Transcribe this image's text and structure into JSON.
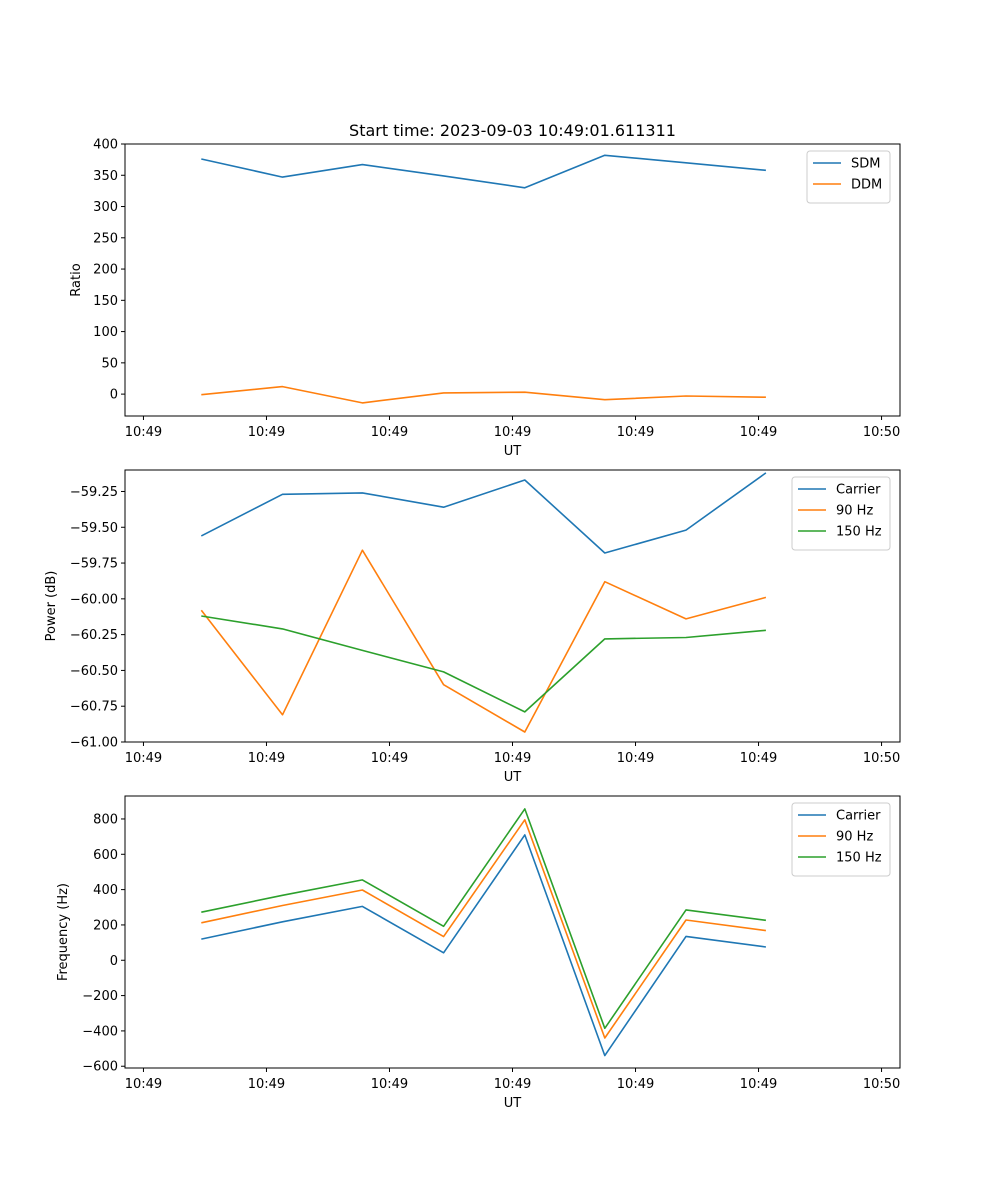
{
  "chart_data": [
    {
      "type": "line",
      "title": "Start time: 2023-09-03 10:49:01.611311",
      "xlabel": "UT",
      "ylabel": "Ratio",
      "xlim": [
        -0.15,
        6.15
      ],
      "ylim": [
        -35,
        400
      ],
      "xticks": [
        0,
        1,
        2,
        3,
        4,
        5,
        6
      ],
      "xtick_labels": [
        "10:49",
        "10:49",
        "10:49",
        "10:49",
        "10:49",
        "10:49",
        "10:50"
      ],
      "yticks": [
        0,
        50,
        100,
        150,
        200,
        250,
        300,
        350,
        400
      ],
      "ytick_labels": [
        "0",
        "50",
        "100",
        "150",
        "200",
        "250",
        "300",
        "350",
        "400"
      ],
      "legend": "top-right",
      "x": [
        0.47,
        1.13,
        1.78,
        2.44,
        3.1,
        3.75,
        4.41,
        5.06
      ],
      "series": [
        {
          "name": "SDM",
          "color": "#1f77b4",
          "values": [
            376,
            347,
            367,
            349,
            330,
            382,
            370,
            358
          ]
        },
        {
          "name": "DDM",
          "color": "#ff7f0e",
          "values": [
            -1,
            12,
            -14,
            2,
            3,
            -9,
            -3,
            -5
          ]
        }
      ]
    },
    {
      "type": "line",
      "title": "",
      "xlabel": "UT",
      "ylabel": "Power (dB)",
      "xlim": [
        -0.15,
        6.15
      ],
      "ylim": [
        -61.0,
        -59.1
      ],
      "xticks": [
        0,
        1,
        2,
        3,
        4,
        5,
        6
      ],
      "xtick_labels": [
        "10:49",
        "10:49",
        "10:49",
        "10:49",
        "10:49",
        "10:49",
        "10:50"
      ],
      "yticks": [
        -59.25,
        -59.5,
        -59.75,
        -60.0,
        -60.25,
        -60.5,
        -60.75,
        -61.0
      ],
      "ytick_labels": [
        "−59.25",
        "−59.50",
        "−59.75",
        "−60.00",
        "−60.25",
        "−60.50",
        "−60.75",
        "−61.00"
      ],
      "legend": "top-right",
      "x": [
        0.47,
        1.13,
        1.78,
        2.44,
        3.1,
        3.75,
        4.41,
        5.06
      ],
      "series": [
        {
          "name": "Carrier",
          "color": "#1f77b4",
          "values": [
            -59.56,
            -59.27,
            -59.26,
            -59.36,
            -59.17,
            -59.68,
            -59.52,
            -59.12
          ]
        },
        {
          "name": "90 Hz",
          "color": "#ff7f0e",
          "values": [
            -60.08,
            -60.81,
            -59.66,
            -60.6,
            -60.93,
            -59.88,
            -60.14,
            -59.99
          ]
        },
        {
          "name": "150 Hz",
          "color": "#2ca02c",
          "values": [
            -60.12,
            -60.21,
            -60.36,
            -60.51,
            -60.79,
            -60.28,
            -60.27,
            -60.22
          ]
        }
      ]
    },
    {
      "type": "line",
      "title": "",
      "xlabel": "UT",
      "ylabel": "Frequency (Hz)",
      "xlim": [
        -0.15,
        6.15
      ],
      "ylim": [
        -610,
        930
      ],
      "xticks": [
        0,
        1,
        2,
        3,
        4,
        5,
        6
      ],
      "xtick_labels": [
        "10:49",
        "10:49",
        "10:49",
        "10:49",
        "10:49",
        "10:49",
        "10:50"
      ],
      "yticks": [
        -600,
        -400,
        -200,
        0,
        200,
        400,
        600,
        800
      ],
      "ytick_labels": [
        "−600",
        "−400",
        "−200",
        "0",
        "200",
        "400",
        "600",
        "800"
      ],
      "legend": "top-right",
      "x": [
        0.47,
        1.13,
        1.78,
        2.44,
        3.1,
        3.75,
        4.41,
        5.06
      ],
      "series": [
        {
          "name": "Carrier",
          "color": "#1f77b4",
          "values": [
            120,
            218,
            305,
            42,
            710,
            -540,
            135,
            75
          ]
        },
        {
          "name": "90 Hz",
          "color": "#ff7f0e",
          "values": [
            212,
            310,
            398,
            134,
            795,
            -440,
            228,
            168
          ]
        },
        {
          "name": "150 Hz",
          "color": "#2ca02c",
          "values": [
            272,
            368,
            455,
            192,
            857,
            -385,
            285,
            226
          ]
        }
      ]
    }
  ]
}
